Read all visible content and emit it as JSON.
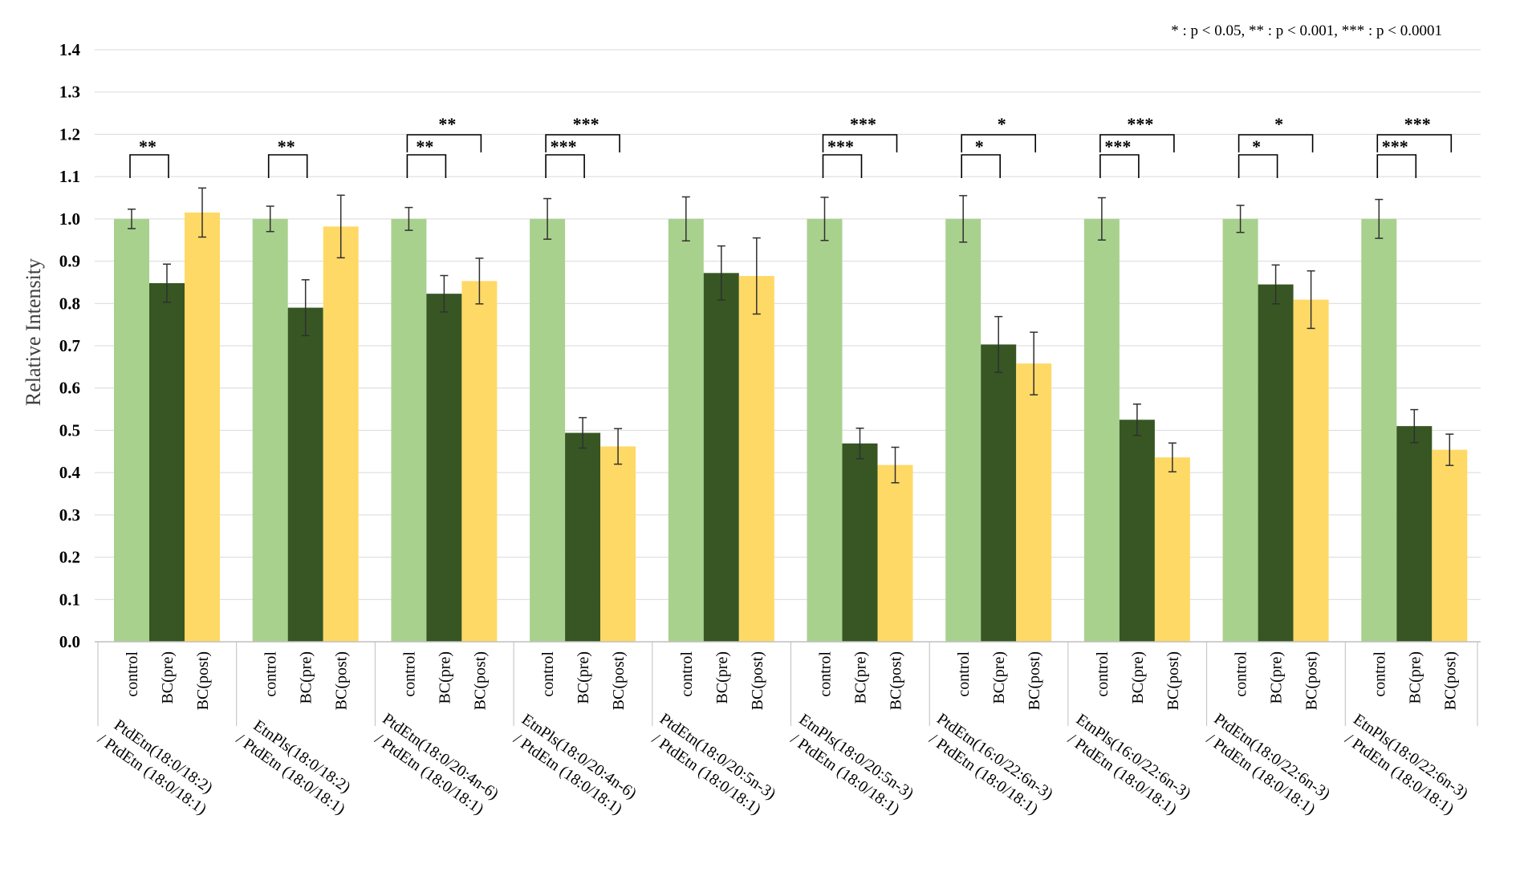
{
  "chart_data": {
    "type": "bar",
    "ylabel": "Relative Intensity",
    "ylim": [
      0,
      1.4
    ],
    "yticks": [
      "0.0",
      "0.1",
      "0.2",
      "0.3",
      "0.4",
      "0.5",
      "0.6",
      "0.7",
      "0.8",
      "0.9",
      "1.0",
      "1.1",
      "1.2",
      "1.3",
      "1.4"
    ],
    "grid": true,
    "significance_legend": "* : p < 0.05,   ** : p < 0.001,   *** : p < 0.0001",
    "colors": {
      "control": "#a9d18e",
      "BC(pre)": "#375623",
      "BC(post)": "#ffd966"
    },
    "series_names": [
      "control",
      "BC(pre)",
      "BC(post)"
    ],
    "groups": [
      {
        "label_line1": "PtdEtn(18:0/18:2)",
        "label_line2": "/ PtdEtn (18:0/18:1)",
        "values": [
          1.0,
          0.848,
          1.015
        ],
        "errors": [
          0.023,
          0.045,
          0.058
        ],
        "significance": [
          {
            "pair": [
              0,
              1
            ],
            "mark": "**"
          }
        ]
      },
      {
        "label_line1": "EtnPls(18:0/18:2)",
        "label_line2": "/ PtdEtn (18:0/18:1)",
        "values": [
          1.0,
          0.79,
          0.982
        ],
        "errors": [
          0.03,
          0.066,
          0.074
        ],
        "significance": [
          {
            "pair": [
              0,
              1
            ],
            "mark": "**"
          }
        ]
      },
      {
        "label_line1": "PtdEtn(18:0/20:4n-6)",
        "label_line2": "/ PtdEtn (18:0/18:1)",
        "values": [
          1.0,
          0.823,
          0.853
        ],
        "errors": [
          0.027,
          0.043,
          0.054
        ],
        "significance": [
          {
            "pair": [
              0,
              1
            ],
            "mark": "**"
          },
          {
            "pair": [
              0,
              2
            ],
            "mark": "**"
          }
        ]
      },
      {
        "label_line1": "EtnPls(18:0/20:4n-6)",
        "label_line2": "/ PtdEtn (18:0/18:1)",
        "values": [
          1.0,
          0.494,
          0.462
        ],
        "errors": [
          0.048,
          0.036,
          0.042
        ],
        "significance": [
          {
            "pair": [
              0,
              1
            ],
            "mark": "***"
          },
          {
            "pair": [
              0,
              2
            ],
            "mark": "***"
          }
        ]
      },
      {
        "label_line1": "PtdEtn(18:0/20:5n-3)",
        "label_line2": "/ PtdEtn (18:0/18:1)",
        "values": [
          1.0,
          0.872,
          0.865
        ],
        "errors": [
          0.052,
          0.064,
          0.09
        ],
        "significance": []
      },
      {
        "label_line1": "EtnPls(18:0/20:5n-3)",
        "label_line2": "/ PtdEtn (18:0/18:1)",
        "values": [
          1.0,
          0.469,
          0.418
        ],
        "errors": [
          0.051,
          0.036,
          0.042
        ],
        "significance": [
          {
            "pair": [
              0,
              1
            ],
            "mark": "***"
          },
          {
            "pair": [
              0,
              2
            ],
            "mark": "***"
          }
        ]
      },
      {
        "label_line1": "PtdEtn(16:0/22:6n-3)",
        "label_line2": "/ PtdEtn (18:0/18:1)",
        "values": [
          1.0,
          0.703,
          0.658
        ],
        "errors": [
          0.055,
          0.066,
          0.074
        ],
        "significance": [
          {
            "pair": [
              0,
              1
            ],
            "mark": "*"
          },
          {
            "pair": [
              0,
              2
            ],
            "mark": "*"
          }
        ]
      },
      {
        "label_line1": "EtnPls(16:0/22:6n-3)",
        "label_line2": "/ PtdEtn (18:0/18:1)",
        "values": [
          1.0,
          0.525,
          0.436
        ],
        "errors": [
          0.05,
          0.037,
          0.034
        ],
        "significance": [
          {
            "pair": [
              0,
              1
            ],
            "mark": "***"
          },
          {
            "pair": [
              0,
              2
            ],
            "mark": "***"
          }
        ]
      },
      {
        "label_line1": "PtdEtn(18:0/22:6n-3)",
        "label_line2": "/ PtdEtn (18:0/18:1)",
        "values": [
          1.0,
          0.845,
          0.809
        ],
        "errors": [
          0.032,
          0.046,
          0.068
        ],
        "significance": [
          {
            "pair": [
              0,
              1
            ],
            "mark": "*"
          },
          {
            "pair": [
              0,
              2
            ],
            "mark": "*"
          }
        ]
      },
      {
        "label_line1": "EtnPls(18:0/22:6n-3)",
        "label_line2": "/ PtdEtn (18:0/18:1)",
        "values": [
          1.0,
          0.51,
          0.454
        ],
        "errors": [
          0.046,
          0.039,
          0.037
        ],
        "significance": [
          {
            "pair": [
              0,
              1
            ],
            "mark": "***"
          },
          {
            "pair": [
              0,
              2
            ],
            "mark": "***"
          }
        ]
      }
    ]
  }
}
